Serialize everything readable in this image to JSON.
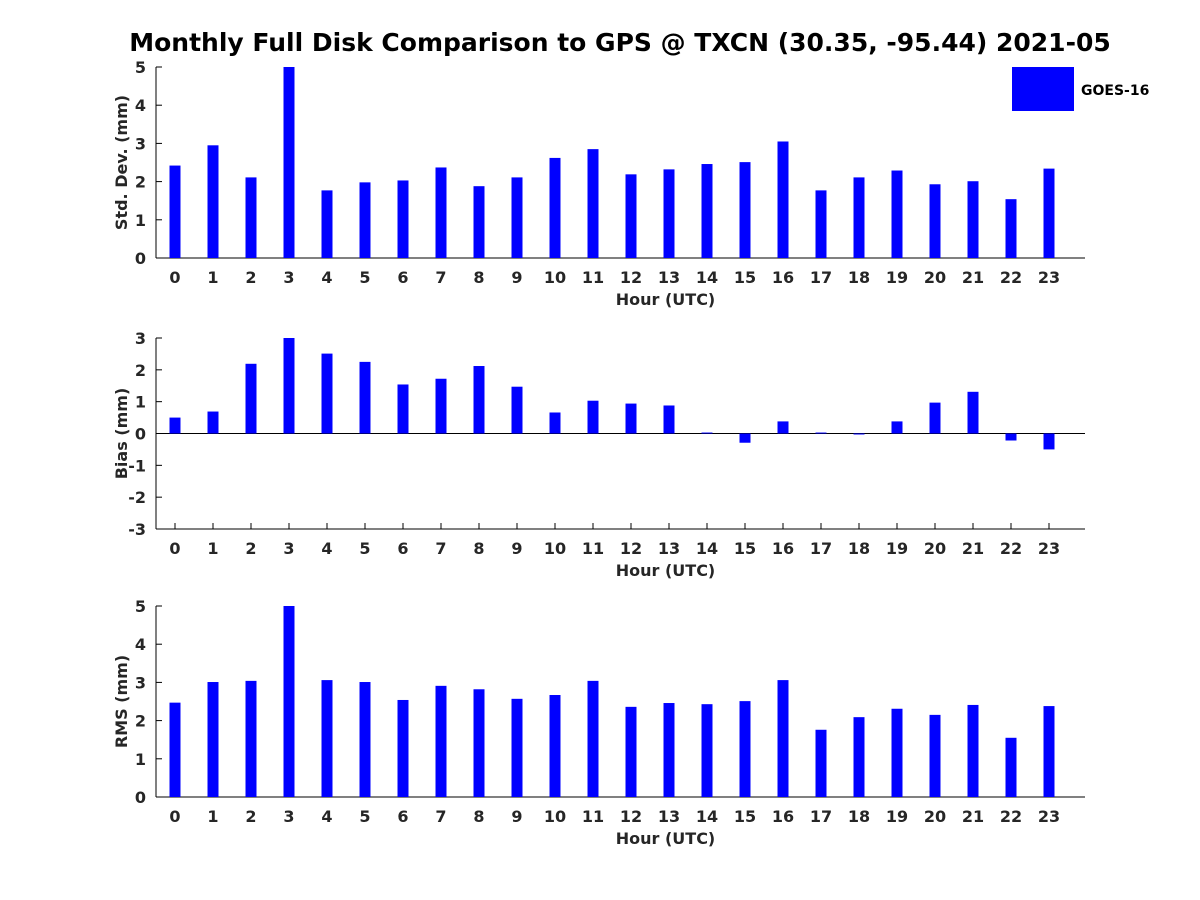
{
  "title": "Monthly Full Disk Comparison to GPS @ TXCN (30.35, -95.44) 2021-05",
  "legend": {
    "label": "GOES-16",
    "color": "#0000ff",
    "placement": "top-right"
  },
  "chart_data": [
    {
      "type": "bar",
      "title": "",
      "xlabel": "Hour (UTC)",
      "ylabel": "Std. Dev. (mm)",
      "categories": [
        "0",
        "1",
        "2",
        "3",
        "4",
        "5",
        "6",
        "7",
        "8",
        "9",
        "10",
        "11",
        "12",
        "13",
        "14",
        "15",
        "16",
        "17",
        "18",
        "19",
        "20",
        "21",
        "22",
        "23"
      ],
      "ylim": [
        0,
        5
      ],
      "yticks": [
        0,
        1,
        2,
        3,
        4,
        5
      ],
      "series": [
        {
          "name": "GOES-16",
          "color": "#0000ff",
          "values": [
            2.42,
            2.95,
            2.11,
            5.0,
            1.77,
            1.98,
            2.03,
            2.37,
            1.88,
            2.11,
            2.62,
            2.85,
            2.19,
            2.32,
            2.46,
            2.51,
            3.05,
            1.77,
            2.11,
            2.29,
            1.93,
            2.01,
            1.54,
            2.34
          ]
        }
      ]
    },
    {
      "type": "bar",
      "title": "",
      "xlabel": "Hour (UTC)",
      "ylabel": "Bias (mm)",
      "categories": [
        "0",
        "1",
        "2",
        "3",
        "4",
        "5",
        "6",
        "7",
        "8",
        "9",
        "10",
        "11",
        "12",
        "13",
        "14",
        "15",
        "16",
        "17",
        "18",
        "19",
        "20",
        "21",
        "22",
        "23"
      ],
      "ylim": [
        -3,
        3
      ],
      "yticks": [
        -3,
        -2,
        -1,
        0,
        1,
        2,
        3
      ],
      "zero_line": true,
      "series": [
        {
          "name": "GOES-16",
          "color": "#0000ff",
          "values": [
            0.5,
            0.69,
            2.19,
            3.0,
            2.51,
            2.25,
            1.54,
            1.72,
            2.12,
            1.47,
            0.66,
            1.03,
            0.94,
            0.88,
            0.03,
            -0.29,
            0.38,
            0.03,
            0.0,
            0.38,
            0.97,
            1.31,
            -0.22,
            -0.5
          ]
        }
      ]
    },
    {
      "type": "bar",
      "title": "",
      "xlabel": "Hour (UTC)",
      "ylabel": "RMS (mm)",
      "categories": [
        "0",
        "1",
        "2",
        "3",
        "4",
        "5",
        "6",
        "7",
        "8",
        "9",
        "10",
        "11",
        "12",
        "13",
        "14",
        "15",
        "16",
        "17",
        "18",
        "19",
        "20",
        "21",
        "22",
        "23"
      ],
      "ylim": [
        0,
        5
      ],
      "yticks": [
        0,
        1,
        2,
        3,
        4,
        5
      ],
      "series": [
        {
          "name": "GOES-16",
          "color": "#0000ff",
          "values": [
            2.47,
            3.01,
            3.04,
            5.0,
            3.06,
            3.01,
            2.54,
            2.91,
            2.82,
            2.57,
            2.67,
            3.04,
            2.36,
            2.46,
            2.43,
            2.51,
            3.06,
            1.76,
            2.09,
            2.31,
            2.15,
            2.41,
            1.55,
            2.38
          ]
        }
      ]
    }
  ]
}
